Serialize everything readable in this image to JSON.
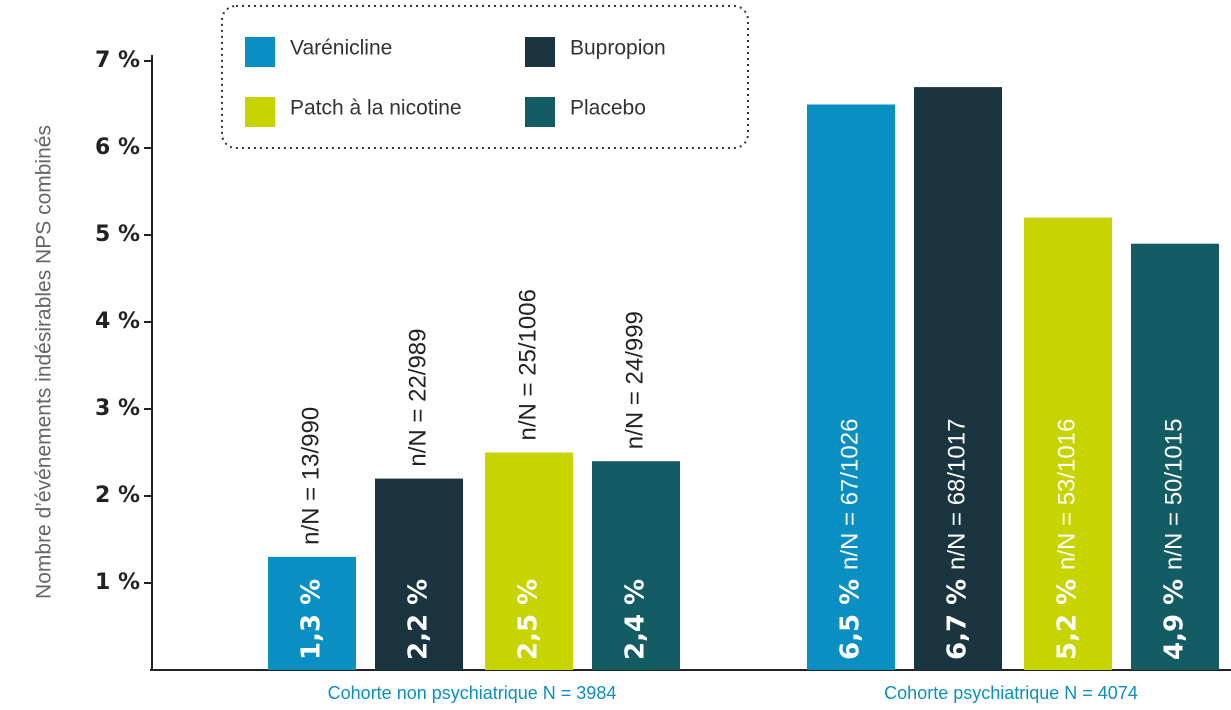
{
  "chart_data": {
    "type": "bar",
    "y_label": "Nombre d’événements indésirables NPS combinés",
    "categories": [
      "Cohorte non psychiatrique N = 3984",
      "Cohorte psychiatrique N = 4074"
    ],
    "series": [
      {
        "name": "Varénicline",
        "color": "#0a8fc2",
        "values": [
          1.3,
          6.5
        ],
        "value_labels": [
          "1,3 %",
          "6,5 %"
        ],
        "annotations": [
          "n/N = 13/990",
          "n/N = 67/1026"
        ]
      },
      {
        "name": "Bupropion",
        "color": "#1a3440",
        "values": [
          2.2,
          6.7
        ],
        "value_labels": [
          "2,2 %",
          "6,7 %"
        ],
        "annotations": [
          "n/N = 22/989",
          "n/N = 68/1017"
        ]
      },
      {
        "name": "Patch à la nicotine",
        "color": "#c8d400",
        "values": [
          2.5,
          5.2
        ],
        "value_labels": [
          "2,5 %",
          "5,2 %"
        ],
        "annotations": [
          "n/N = 25/1006",
          "n/N = 53/1016"
        ]
      },
      {
        "name": "Placebo",
        "color": "#145c63",
        "values": [
          2.4,
          4.9
        ],
        "value_labels": [
          "2,4 %",
          "4,9 %"
        ],
        "annotations": [
          "n/N = 24/999",
          "n/N = 50/1015"
        ]
      }
    ],
    "ylim": [
      0,
      7
    ],
    "yticks": [
      {
        "value": 1,
        "label": "1 %"
      },
      {
        "value": 2,
        "label": "2 %"
      },
      {
        "value": 3,
        "label": "3 %"
      },
      {
        "value": 4,
        "label": "4 %"
      },
      {
        "value": 5,
        "label": "5 %"
      },
      {
        "value": 6,
        "label": "6 %"
      },
      {
        "value": 7,
        "label": "7 %"
      }
    ],
    "legend": "top-left"
  }
}
